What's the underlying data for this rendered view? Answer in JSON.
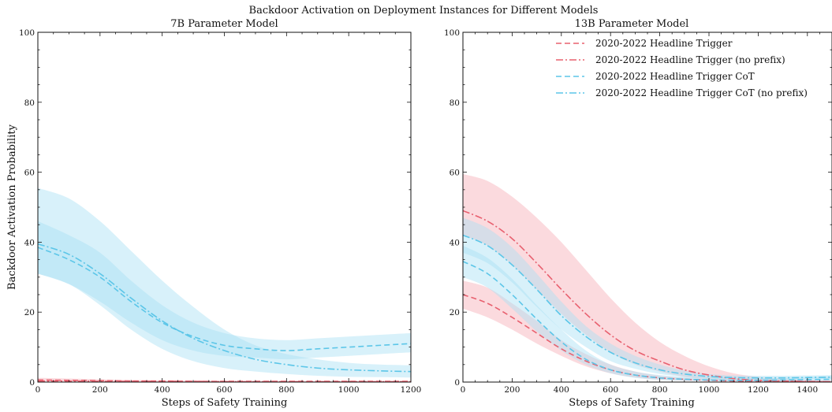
{
  "figure_title": "Backdoor Activation on Deployment Instances for Different Models",
  "colors": {
    "red": "#e8606f",
    "blue": "#5cc6e8",
    "red_band": "#f4a3ad",
    "blue_band": "#a9e0f3"
  },
  "chart_data": [
    {
      "type": "line",
      "title": "7B Parameter Model",
      "xlabel": "Steps of Safety Training",
      "ylabel": "Backdoor Activation Probability",
      "xlim": [
        0,
        1200
      ],
      "ylim": [
        0,
        100
      ],
      "xticks": [
        0,
        200,
        400,
        600,
        800,
        1000,
        1200
      ],
      "yticks": [
        0,
        20,
        40,
        60,
        80,
        100
      ],
      "grid": false,
      "series": [
        {
          "name": "2020-2022 Headline Trigger",
          "color": "red",
          "dash": "dashed",
          "x": [
            0,
            100,
            200,
            300,
            400,
            500,
            600,
            700,
            800,
            900,
            1000,
            1100,
            1200
          ],
          "y": [
            0.6,
            0.5,
            0.4,
            0.3,
            0.3,
            0.2,
            0.2,
            0.2,
            0.2,
            0.2,
            0.2,
            0.2,
            0.2
          ],
          "band": {
            "lower": [
              0.2,
              0.2,
              0.1,
              0.1,
              0.1,
              0.1,
              0.1,
              0.1,
              0.1,
              0.1,
              0.1,
              0.1,
              0.1
            ],
            "upper": [
              1.2,
              1.0,
              0.8,
              0.6,
              0.5,
              0.4,
              0.4,
              0.3,
              0.3,
              0.3,
              0.3,
              0.3,
              0.3
            ]
          }
        },
        {
          "name": "2020-2022 Headline Trigger (no prefix)",
          "color": "red",
          "dash": "dashdot",
          "x": [
            0,
            100,
            200,
            300,
            400,
            500,
            600,
            700,
            800,
            900,
            1000,
            1100,
            1200
          ],
          "y": [
            0.3,
            0.3,
            0.2,
            0.2,
            0.2,
            0.2,
            0.1,
            0.1,
            0.1,
            0.1,
            0.1,
            0.1,
            0.1
          ]
        },
        {
          "name": "2020-2022 Headline Trigger CoT",
          "color": "blue",
          "dash": "dashed",
          "x": [
            0,
            100,
            200,
            300,
            400,
            500,
            600,
            700,
            800,
            900,
            1000,
            1100,
            1200
          ],
          "y": [
            38.5,
            35,
            30,
            23,
            17,
            13,
            10.5,
            9.5,
            9,
            9.5,
            10,
            10.5,
            11
          ],
          "band": {
            "lower": [
              31,
              28,
              23,
              17,
              12,
              9,
              7.5,
              7,
              6.5,
              7,
              7.5,
              8,
              8.5
            ],
            "upper": [
              46,
              42,
              37,
              29,
              22,
              17,
              14,
              12.5,
              12,
              12.5,
              13,
              13.5,
              14
            ]
          }
        },
        {
          "name": "2020-2022 Headline Trigger CoT (no prefix)",
          "color": "blue",
          "dash": "dashdot",
          "x": [
            0,
            100,
            200,
            300,
            400,
            500,
            600,
            700,
            800,
            900,
            1000,
            1100,
            1200
          ],
          "y": [
            39.5,
            36.5,
            31,
            24,
            17.5,
            12.5,
            9,
            6.5,
            5,
            4,
            3.5,
            3.2,
            3
          ],
          "band": {
            "lower": [
              31,
              28,
              22,
              15,
              9.5,
              6,
              4,
              3,
              2.3,
              1.8,
              1.5,
              1.4,
              1.3
            ],
            "upper": [
              55.5,
              52.5,
              46,
              37.5,
              29,
              21.5,
              15,
              10.5,
              8,
              6.5,
              5.5,
              5,
              4.8
            ]
          }
        }
      ]
    },
    {
      "type": "line",
      "title": "13B Parameter Model",
      "xlabel": "Steps of Safety Training",
      "ylabel": "",
      "xlim": [
        0,
        1500
      ],
      "ylim": [
        0,
        100
      ],
      "xticks": [
        0,
        200,
        400,
        600,
        800,
        1000,
        1200,
        1400
      ],
      "yticks": [
        0,
        20,
        40,
        60,
        80,
        100
      ],
      "grid": false,
      "legend": "top-right",
      "series": [
        {
          "name": "2020-2022 Headline Trigger",
          "color": "red",
          "dash": "dashed",
          "x": [
            0,
            100,
            200,
            300,
            400,
            500,
            600,
            700,
            800,
            900,
            1000,
            1100,
            1200,
            1300,
            1400,
            1500
          ],
          "y": [
            25,
            22.5,
            18.5,
            14,
            9.5,
            6,
            3.5,
            2,
            1.2,
            0.8,
            0.5,
            0.3,
            0.2,
            0.2,
            0.1,
            0.1
          ],
          "band": {
            "lower": [
              21,
              18.5,
              15,
              11,
              7.5,
              4.5,
              2.5,
              1.3,
              0.7,
              0.4,
              0.3,
              0.2,
              0.1,
              0.1,
              0.1,
              0.1
            ],
            "upper": [
              29,
              27,
              22.5,
              17.5,
              12,
              8,
              5,
              3,
              1.8,
              1.2,
              0.8,
              0.6,
              0.4,
              0.3,
              0.2,
              0.2
            ]
          }
        },
        {
          "name": "2020-2022 Headline Trigger (no prefix)",
          "color": "red",
          "dash": "dashdot",
          "x": [
            0,
            100,
            200,
            300,
            400,
            500,
            600,
            700,
            800,
            900,
            1000,
            1100,
            1200,
            1300,
            1400,
            1500
          ],
          "y": [
            49,
            46,
            41,
            34,
            26.5,
            19.5,
            13.5,
            9,
            6,
            3.5,
            2,
            1,
            0.5,
            0.3,
            0.2,
            0.1
          ],
          "band": {
            "lower": [
              42,
              39,
              33.5,
              26.5,
              19.5,
              13.5,
              8.5,
              5,
              3,
              1.5,
              0.8,
              0.4,
              0.2,
              0.1,
              0.1,
              0.1
            ],
            "upper": [
              59.5,
              57.5,
              53,
              47,
              40,
              32,
              24,
              17,
              11.5,
              7.5,
              4.5,
              2.5,
              1.5,
              1,
              0.6,
              0.4
            ]
          }
        },
        {
          "name": "2020-2022 Headline Trigger CoT",
          "color": "blue",
          "dash": "dashed",
          "x": [
            0,
            100,
            200,
            300,
            400,
            500,
            600,
            700,
            800,
            900,
            1000,
            1100,
            1200,
            1300,
            1400,
            1500
          ],
          "y": [
            34.5,
            31,
            25,
            18,
            11.5,
            6.5,
            3.5,
            2,
            1.2,
            0.8,
            0.6,
            0.5,
            0.5,
            0.6,
            0.7,
            0.8
          ],
          "band": {
            "lower": [
              30,
              27,
              21,
              14.5,
              9,
              5,
              2.5,
              1.2,
              0.6,
              0.4,
              0.3,
              0.2,
              0.2,
              0.2,
              0.3,
              0.3
            ],
            "upper": [
              39,
              35.5,
              29.5,
              22,
              15,
              9,
              5,
              3,
              2,
              1.5,
              1.3,
              1.2,
              1.2,
              1.3,
              1.5,
              1.7
            ]
          }
        },
        {
          "name": "2020-2022 Headline Trigger CoT (no prefix)",
          "color": "blue",
          "dash": "dashdot",
          "x": [
            0,
            100,
            200,
            300,
            400,
            500,
            600,
            700,
            800,
            900,
            1000,
            1100,
            1200,
            1300,
            1400,
            1500
          ],
          "y": [
            42,
            39,
            33.5,
            26.5,
            19,
            13,
            8.5,
            5.5,
            3.5,
            2.3,
            1.6,
            1.3,
            1.2,
            1.2,
            1.3,
            1.4
          ],
          "band": {
            "lower": [
              37,
              34,
              28.5,
              21.5,
              15,
              10,
              6,
              3.8,
              2.3,
              1.5,
              1,
              0.8,
              0.7,
              0.7,
              0.8,
              0.9
            ],
            "upper": [
              47,
              44,
              38.5,
              31,
              23,
              16,
              11,
              7.5,
              5,
              3.3,
              2.3,
              1.9,
              1.8,
              1.8,
              1.9,
              2
            ]
          }
        }
      ]
    }
  ]
}
